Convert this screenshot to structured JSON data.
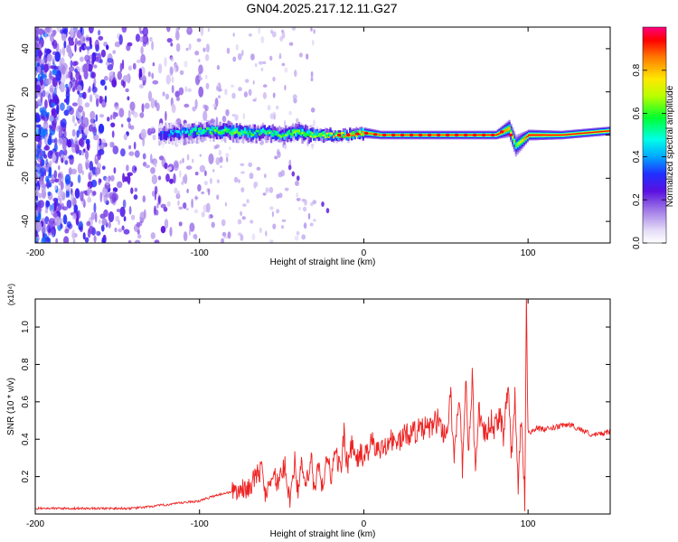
{
  "title": "GN04.2025.217.12.11.G27",
  "colors": {
    "snr_line": "#ee2222",
    "colormap": [
      "#ffffff",
      "#d6c8f4",
      "#a98ce8",
      "#6a2ee0",
      "#2222ff",
      "#00aaff",
      "#00ffee",
      "#00ff00",
      "#aaff00",
      "#ffff00",
      "#ff8800",
      "#ff0000",
      "#ff00aa"
    ]
  },
  "chart_data": [
    {
      "type": "heatmap",
      "title": "GN04.2025.217.12.11.G27",
      "xlabel": "Height of straight line (km)",
      "ylabel": "Frequency (Hz)",
      "xlim": [
        -200,
        150
      ],
      "ylim": [
        -50,
        50
      ],
      "xticks": [
        "-200",
        "-100",
        "0",
        "100"
      ],
      "xtick_values": [
        -200,
        -100,
        0,
        100
      ],
      "yticks": [
        "-40",
        "-20",
        "0",
        "20",
        "40"
      ],
      "ytick_values": [
        -40,
        -20,
        0,
        20,
        40
      ],
      "colorbar": {
        "label": "Normalized spectral amplitude",
        "range": [
          0,
          1
        ],
        "ticks": [
          "0.0",
          "0.2",
          "0.4",
          "0.6",
          "0.8"
        ],
        "tick_values": [
          0.0,
          0.2,
          0.4,
          0.6,
          0.8
        ]
      },
      "ridge": {
        "x": [
          -125,
          -110,
          -100,
          -90,
          -80,
          -70,
          -60,
          -50,
          -40,
          -30,
          -20,
          -10,
          0,
          10,
          20,
          40,
          60,
          80,
          88,
          92,
          100,
          120,
          150
        ],
        "freq": [
          0,
          1,
          2,
          2,
          1.5,
          1,
          1,
          0,
          1,
          0,
          0,
          0,
          1,
          0,
          0,
          0,
          0,
          0,
          3,
          -5,
          0,
          0,
          2
        ],
        "amplitude": [
          0.3,
          0.45,
          0.55,
          0.6,
          0.6,
          0.55,
          0.6,
          0.6,
          0.65,
          0.65,
          0.75,
          0.8,
          0.85,
          0.88,
          0.9,
          0.9,
          0.92,
          0.95,
          0.8,
          0.6,
          0.95,
          0.95,
          0.95
        ],
        "width_hz": [
          10,
          9,
          8,
          8,
          8,
          8,
          7,
          7,
          8,
          6,
          5,
          5,
          5,
          4,
          4,
          4,
          4,
          4,
          8,
          10,
          5,
          4,
          4
        ]
      }
    },
    {
      "type": "line",
      "xlabel": "Height of straight line (km)",
      "ylabel": "SNR (10 * v/v)",
      "y_multiplier": "(x10⁴)",
      "xlim": [
        -200,
        150
      ],
      "ylim": [
        0,
        1.15
      ],
      "xticks": [
        "-200",
        "-100",
        "0",
        "100"
      ],
      "xtick_values": [
        -200,
        -100,
        0,
        100
      ],
      "yticks": [
        "0.2",
        "0.4",
        "0.6",
        "0.8",
        "1.0"
      ],
      "ytick_values": [
        0.2,
        0.4,
        0.6,
        0.8,
        1.0
      ],
      "series": [
        {
          "color": "#ee2222",
          "x": [
            -200,
            -190,
            -180,
            -170,
            -160,
            -150,
            -140,
            -130,
            -120,
            -110,
            -100,
            -90,
            -80,
            -70,
            -66,
            -62,
            -60,
            -56,
            -52,
            -48,
            -45,
            -42,
            -40,
            -38,
            -35,
            -32,
            -30,
            -28,
            -25,
            -22,
            -20,
            -17,
            -14,
            -12,
            -10,
            -7,
            -5,
            -2,
            0,
            5,
            10,
            15,
            20,
            25,
            30,
            35,
            40,
            45,
            50,
            53,
            55,
            58,
            60,
            62,
            64,
            66,
            68,
            70,
            72,
            75,
            78,
            80,
            83,
            85,
            88,
            90,
            92,
            94,
            96,
            98,
            99,
            100,
            102,
            105,
            110,
            115,
            120,
            125,
            130,
            135,
            140,
            145,
            150
          ],
          "y": [
            0.03,
            0.03,
            0.03,
            0.03,
            0.03,
            0.03,
            0.03,
            0.04,
            0.05,
            0.06,
            0.07,
            0.1,
            0.12,
            0.14,
            0.2,
            0.24,
            0.1,
            0.22,
            0.16,
            0.26,
            0.08,
            0.28,
            0.12,
            0.25,
            0.15,
            0.3,
            0.1,
            0.25,
            0.14,
            0.32,
            0.2,
            0.33,
            0.22,
            0.45,
            0.25,
            0.38,
            0.28,
            0.32,
            0.3,
            0.38,
            0.33,
            0.4,
            0.38,
            0.42,
            0.44,
            0.45,
            0.46,
            0.5,
            0.42,
            0.62,
            0.3,
            0.66,
            0.25,
            0.7,
            0.35,
            0.74,
            0.2,
            0.58,
            0.42,
            0.44,
            0.5,
            0.45,
            0.55,
            0.42,
            0.68,
            0.3,
            0.62,
            0.15,
            0.56,
            0.05,
            1.15,
            0.45,
            0.44,
            0.46,
            0.45,
            0.46,
            0.47,
            0.48,
            0.46,
            0.44,
            0.42,
            0.43,
            0.44
          ]
        }
      ]
    }
  ]
}
